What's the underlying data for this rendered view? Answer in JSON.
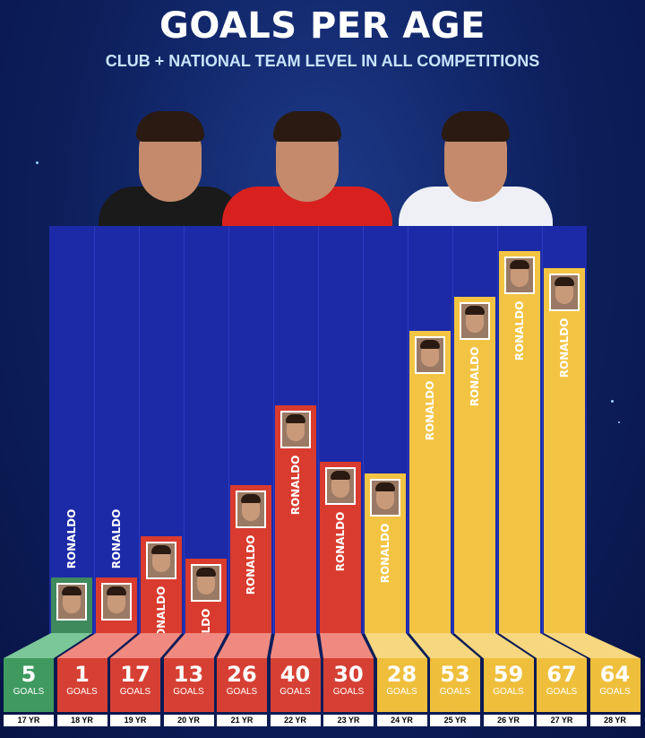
{
  "colors": {
    "green": "#3f8a5c",
    "red": "#d93b2e",
    "yellow": "#f3c443",
    "panel": "#1c2aa8"
  },
  "chart_data": {
    "type": "bar",
    "title": "GOALS PER AGE",
    "subtitle": "CLUB + NATIONAL TEAM LEVEL IN ALL COMPETITIONS",
    "bar_label": "RONALDO",
    "unit": "GOALS",
    "categories": [
      "17 YR",
      "18 YR",
      "19 YR",
      "20 YR",
      "21 YR",
      "22 YR",
      "23 YR",
      "24 YR",
      "25 YR",
      "26 YR",
      "27 YR",
      "28 YR"
    ],
    "values": [
      5,
      1,
      17,
      13,
      26,
      40,
      30,
      28,
      53,
      59,
      67,
      64
    ],
    "bar_colors": [
      "green",
      "red",
      "red",
      "red",
      "red",
      "red",
      "red",
      "yellow",
      "yellow",
      "yellow",
      "yellow",
      "yellow"
    ],
    "ylim": [
      0,
      70
    ],
    "grid": false,
    "legend": "none"
  }
}
